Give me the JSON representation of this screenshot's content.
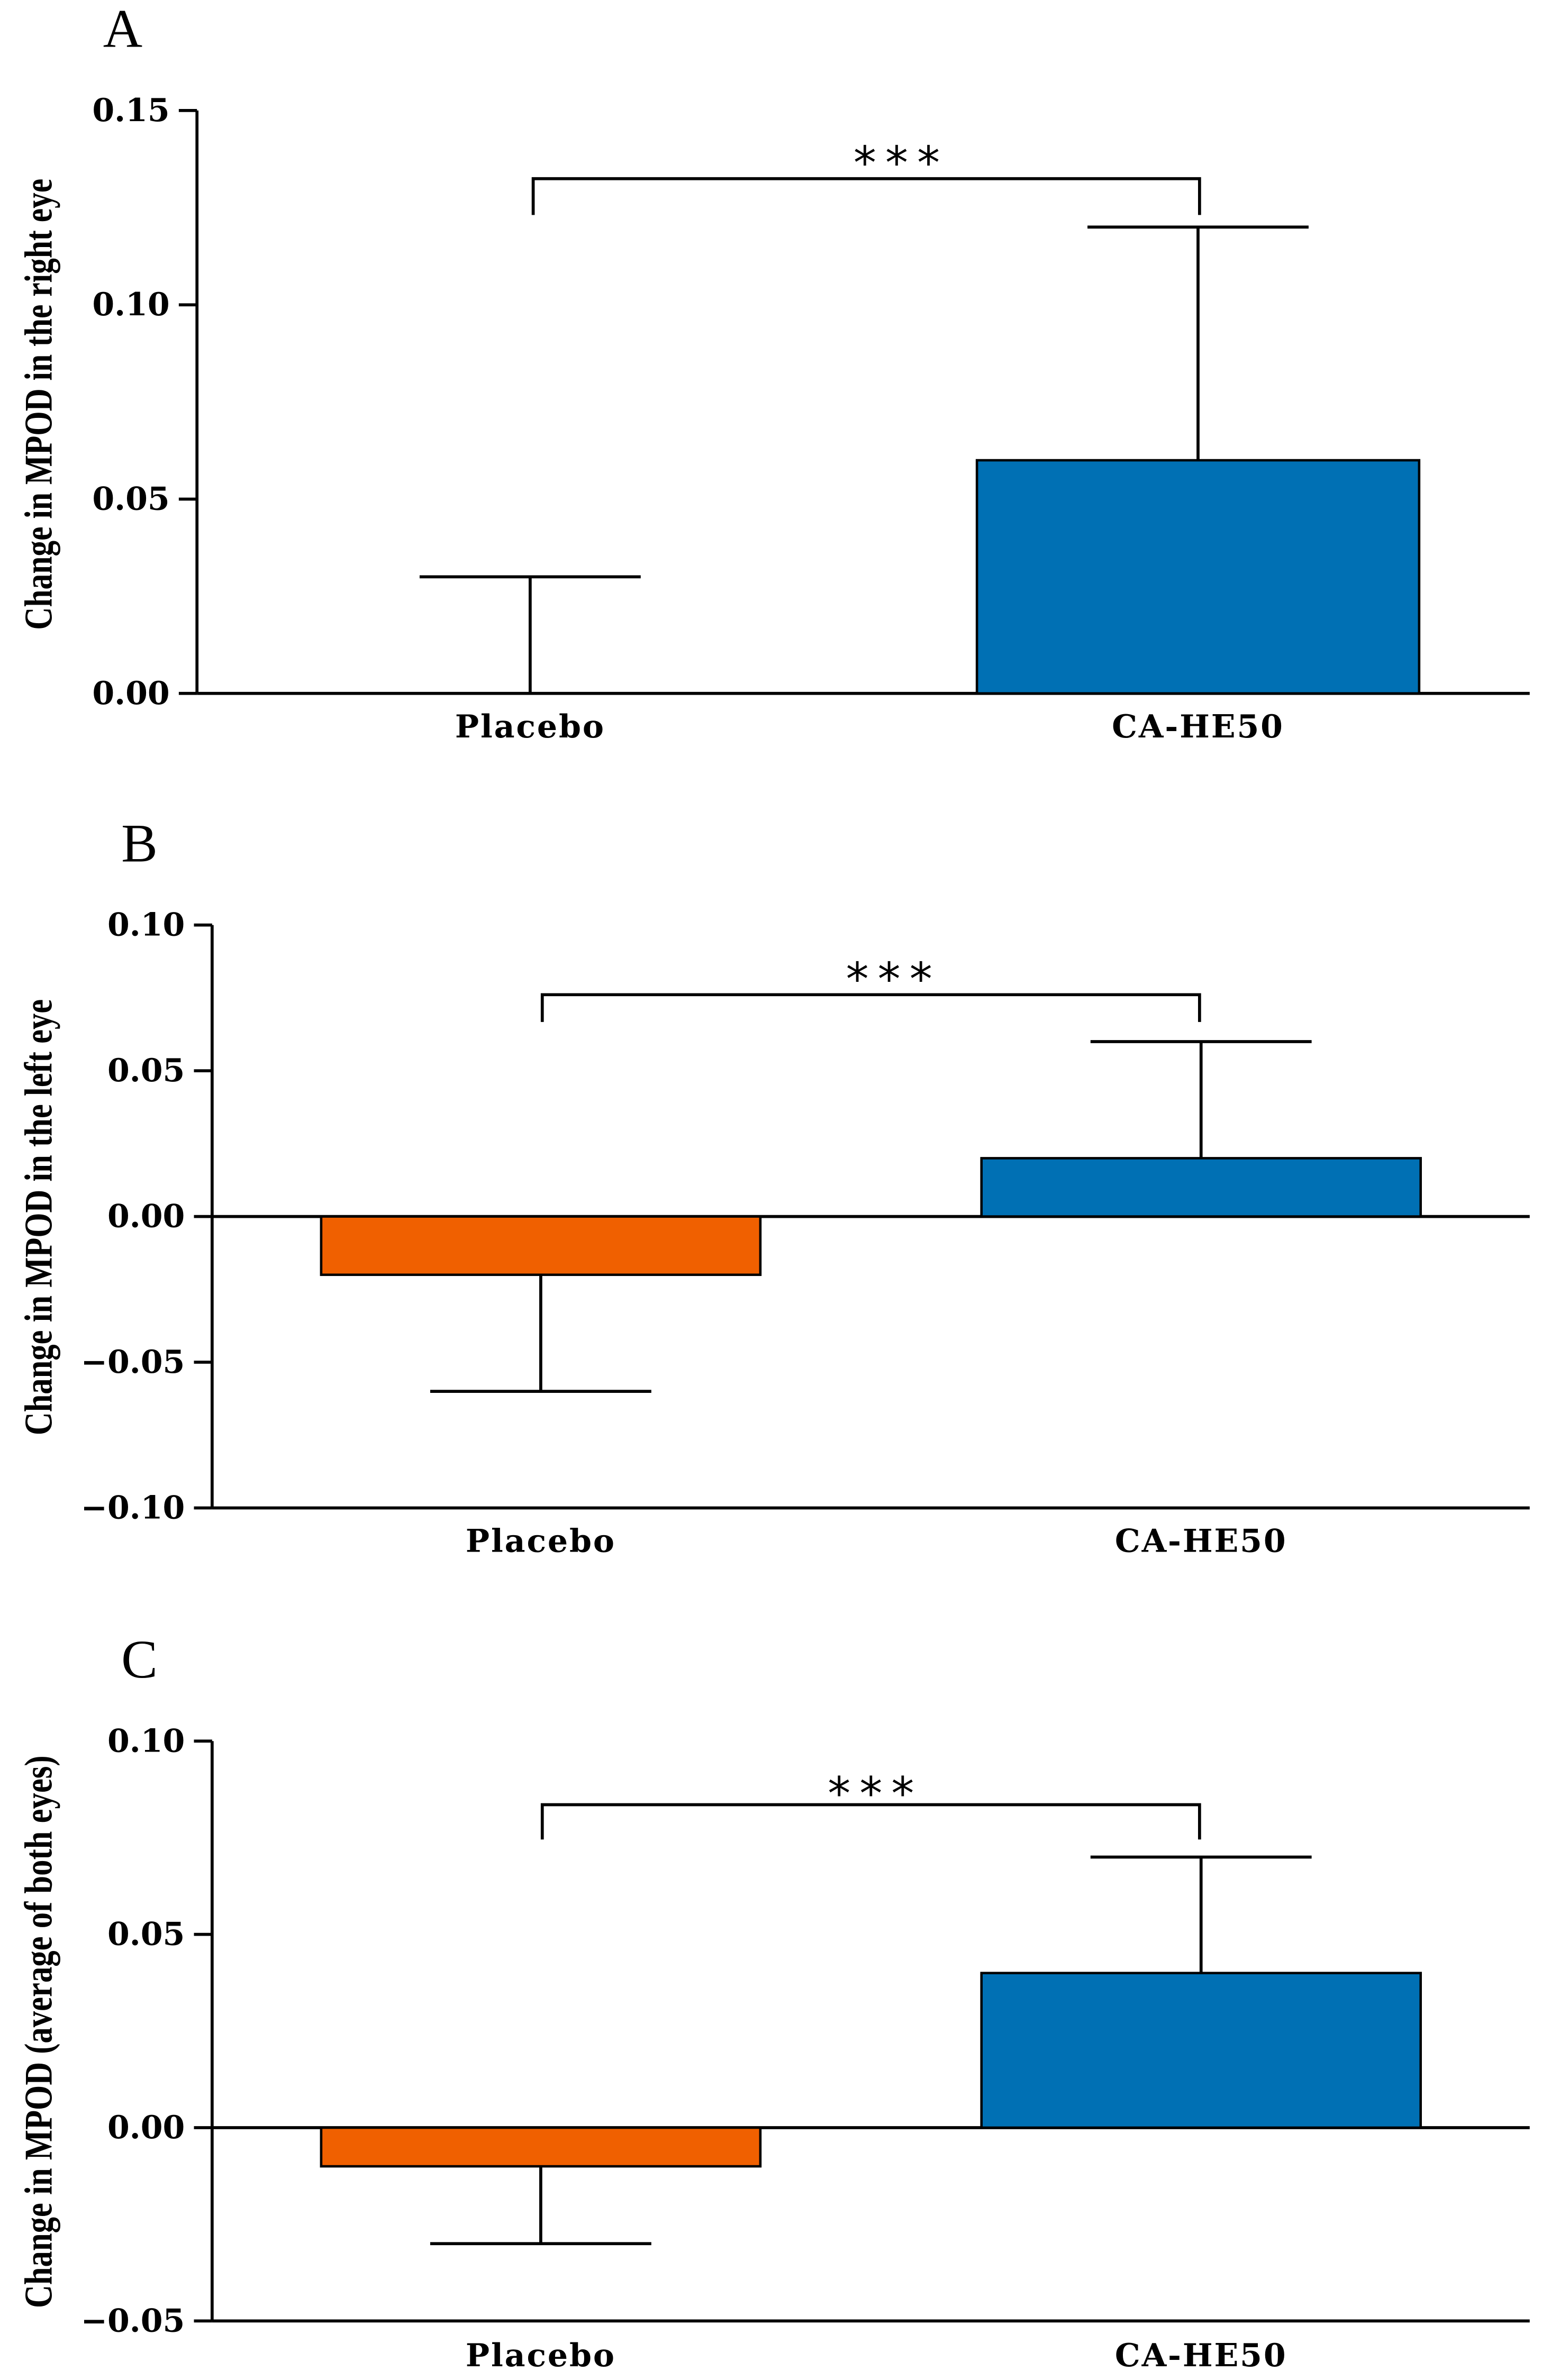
{
  "chart_data": [
    {
      "panel_label": "A",
      "type": "bar",
      "categories": [
        "Placebo",
        "CA-HE50"
      ],
      "values": [
        0.0,
        0.06
      ],
      "errors": [
        0.03,
        0.06
      ],
      "ylabel": "Change in MPOD in the right eye",
      "ylim": [
        0,
        0.15
      ],
      "yticks": [
        0,
        0.05,
        0.1,
        0.15
      ],
      "ytick_labels": [
        "0.00",
        "0.05",
        "0.10",
        "0.15"
      ],
      "significance": "***",
      "colors": [
        "#f06000",
        "#0070b4"
      ],
      "grid": false
    },
    {
      "panel_label": "B",
      "type": "bar",
      "categories": [
        "Placebo",
        "CA-HE50"
      ],
      "values": [
        -0.02,
        0.02
      ],
      "errors": [
        0.04,
        0.04
      ],
      "ylabel": "Change in MPOD in the left eye",
      "ylim": [
        -0.1,
        0.1
      ],
      "yticks": [
        -0.1,
        -0.05,
        0,
        0.05,
        0.1
      ],
      "ytick_labels": [
        "−0.10",
        "−0.05",
        "0.00",
        "0.05",
        "0.10"
      ],
      "significance": "***",
      "colors": [
        "#f06000",
        "#0070b4"
      ],
      "grid": false
    },
    {
      "panel_label": "C",
      "type": "bar",
      "categories": [
        "Placebo",
        "CA-HE50"
      ],
      "values": [
        -0.01,
        0.04
      ],
      "errors": [
        0.02,
        0.03
      ],
      "ylabel": "Change in MPOD (average of both eyes)",
      "ylim": [
        -0.05,
        0.1
      ],
      "yticks": [
        -0.05,
        0,
        0.05,
        0.1
      ],
      "ytick_labels": [
        "−0.05",
        "0.00",
        "0.05",
        "0.10"
      ],
      "significance": "***",
      "colors": [
        "#f06000",
        "#0070b4"
      ],
      "grid": false
    }
  ]
}
